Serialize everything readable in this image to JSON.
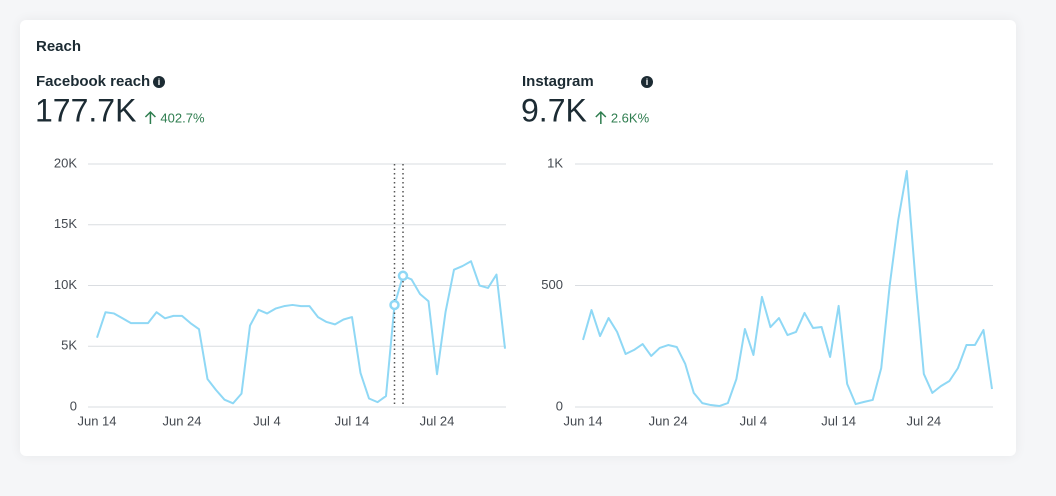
{
  "title": "Reach",
  "chart_data": [
    {
      "type": "line",
      "title": "Facebook reach",
      "headline": "177.7K",
      "change": "402.7%",
      "categories": [
        "Jun 14",
        null,
        null,
        null,
        null,
        null,
        null,
        null,
        null,
        null,
        "Jun 24",
        null,
        null,
        null,
        null,
        null,
        null,
        null,
        null,
        null,
        "Jul 4",
        null,
        null,
        null,
        null,
        null,
        null,
        null,
        null,
        null,
        "Jul 14",
        null,
        null,
        null,
        null,
        null,
        null,
        null,
        null,
        null,
        "Jul 24",
        null,
        null,
        null,
        null,
        null,
        null,
        null,
        null
      ],
      "series": [
        {
          "name": "Facebook reach",
          "color": "#8fd8f5",
          "values": [
            5700,
            7800,
            7700,
            7300,
            6900,
            6900,
            6900,
            7800,
            7300,
            7500,
            7500,
            6900,
            6400,
            2300,
            1400,
            600,
            300,
            1100,
            6700,
            8000,
            7700,
            8100,
            8300,
            8400,
            8300,
            8300,
            7400,
            7000,
            6800,
            7200,
            7400,
            2800,
            700,
            400,
            900,
            8400,
            10800,
            10500,
            9300,
            8700,
            2700,
            7800,
            11300,
            11600,
            12000,
            10000,
            9800,
            10900,
            4800
          ]
        }
      ],
      "ylim": [
        0,
        20000
      ],
      "yticks": [
        0,
        {
          "value": 5000,
          "label": "5K"
        },
        {
          "value": 10000,
          "label": "10K"
        },
        {
          "value": 15000,
          "label": "15K"
        },
        {
          "value": 20000,
          "label": "20K"
        }
      ],
      "grid": true,
      "hover_points": [
        35,
        36
      ]
    },
    {
      "type": "line",
      "title": "Instagram",
      "headline": "9.7K",
      "change": "2.6K%",
      "categories": [
        "Jun 14",
        null,
        null,
        null,
        null,
        null,
        null,
        null,
        null,
        null,
        "Jun 24",
        null,
        null,
        null,
        null,
        null,
        null,
        null,
        null,
        null,
        "Jul 4",
        null,
        null,
        null,
        null,
        null,
        null,
        null,
        null,
        null,
        "Jul 14",
        null,
        null,
        null,
        null,
        null,
        null,
        null,
        null,
        null,
        "Jul 24",
        null,
        null,
        null,
        null,
        null,
        null,
        null,
        null
      ],
      "series": [
        {
          "name": "Instagram",
          "color": "#8fd8f5",
          "values": [
            276,
            399,
            292,
            366,
            309,
            218,
            235,
            259,
            210,
            243,
            255,
            247,
            177,
            58,
            16,
            8,
            4,
            16,
            115,
            321,
            214,
            453,
            329,
            366,
            296,
            309,
            387,
            325,
            329,
            206,
            416,
            95,
            12,
            21,
            29,
            160,
            502,
            770,
            971,
            531,
            136,
            58,
            86,
            107,
            160,
            255,
            255,
            317,
            74
          ]
        }
      ],
      "ylim": [
        0,
        1000
      ],
      "yticks": [
        0,
        500,
        {
          "value": 1000,
          "label": "1K"
        }
      ],
      "grid": true
    }
  ]
}
